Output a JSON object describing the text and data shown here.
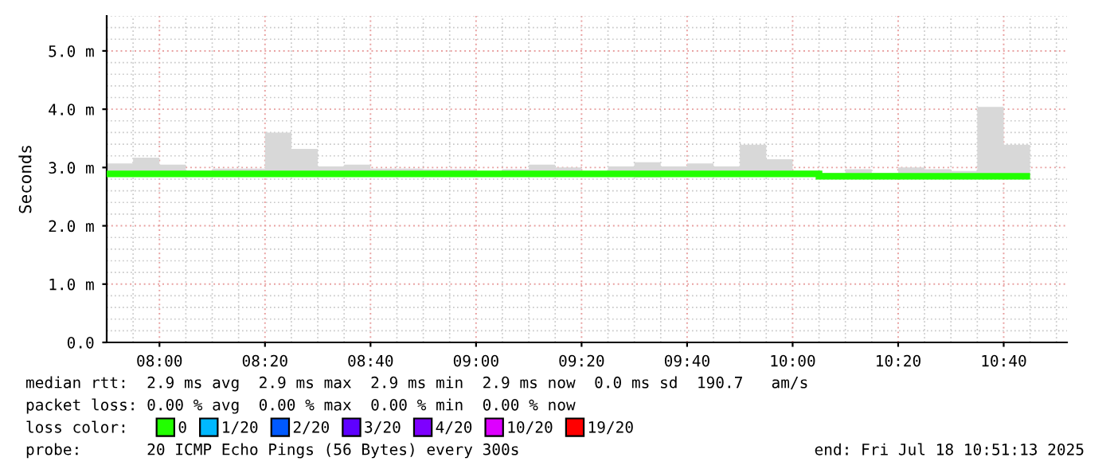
{
  "chart_data": {
    "type": "step",
    "ylabel": "Seconds",
    "x": [
      "2025-07-18T07:50",
      "2025-07-18T07:55",
      "2025-07-18T08:00",
      "2025-07-18T08:05",
      "2025-07-18T08:10",
      "2025-07-18T08:15",
      "2025-07-18T08:20",
      "2025-07-18T08:25",
      "2025-07-18T08:30",
      "2025-07-18T08:35",
      "2025-07-18T08:40",
      "2025-07-18T08:45",
      "2025-07-18T08:50",
      "2025-07-18T08:55",
      "2025-07-18T09:00",
      "2025-07-18T09:05",
      "2025-07-18T09:10",
      "2025-07-18T09:15",
      "2025-07-18T09:20",
      "2025-07-18T09:25",
      "2025-07-18T09:30",
      "2025-07-18T09:35",
      "2025-07-18T09:40",
      "2025-07-18T09:45",
      "2025-07-18T09:50",
      "2025-07-18T09:55",
      "2025-07-18T10:00",
      "2025-07-18T10:05",
      "2025-07-18T10:10",
      "2025-07-18T10:15",
      "2025-07-18T10:20",
      "2025-07-18T10:25",
      "2025-07-18T10:30",
      "2025-07-18T10:35",
      "2025-07-18T10:40",
      "2025-07-18T10:45"
    ],
    "series": [
      {
        "name": "0",
        "color": "#22ff00",
        "values": [
          2.89,
          2.89,
          2.89,
          2.89,
          2.89,
          2.89,
          2.89,
          2.89,
          2.89,
          2.89,
          2.89,
          2.89,
          2.89,
          2.89,
          2.89,
          2.89,
          2.89,
          2.89,
          2.89,
          2.89,
          2.89,
          2.89,
          2.89,
          2.89,
          2.89,
          2.89,
          2.89,
          2.85,
          2.85,
          2.85,
          2.85,
          2.85,
          2.85,
          2.85,
          2.85,
          2.85
        ],
        "lower": [
          2.86,
          2.86,
          2.86,
          2.86,
          2.86,
          2.86,
          2.86,
          2.86,
          2.86,
          2.86,
          2.86,
          2.86,
          2.86,
          2.86,
          2.86,
          2.86,
          2.86,
          2.86,
          2.86,
          2.86,
          2.83,
          2.86,
          2.86,
          2.86,
          2.86,
          2.86,
          2.86,
          2.83,
          2.83,
          2.83,
          2.83,
          2.83,
          2.83,
          2.83,
          2.83,
          2.83
        ],
        "upper": [
          3.07,
          3.17,
          3.05,
          2.95,
          2.98,
          2.98,
          3.6,
          3.32,
          3.02,
          3.05,
          2.98,
          2.98,
          2.97,
          2.97,
          2.92,
          2.97,
          3.05,
          3.0,
          2.94,
          3.02,
          3.09,
          3.02,
          3.07,
          3.02,
          3.39,
          3.14,
          2.95,
          2.91,
          2.97,
          2.91,
          3.0,
          2.97,
          2.94,
          4.04,
          3.39,
          3.39
        ]
      },
      {
        "name": "1/20",
        "color": "#00b8ff",
        "values": [
          null,
          null,
          null,
          null,
          null,
          null,
          null,
          null,
          null,
          null,
          null,
          null,
          null,
          null,
          null,
          null,
          null,
          null,
          null,
          null,
          null,
          null,
          null,
          null,
          null,
          null,
          null,
          null,
          null,
          null,
          null,
          null,
          null,
          null,
          null,
          null
        ]
      },
      {
        "name": "2/20",
        "color": "#0059ff",
        "values": [
          null,
          null,
          null,
          null,
          null,
          null,
          null,
          null,
          null,
          null,
          null,
          null,
          null,
          null,
          null,
          null,
          null,
          null,
          null,
          null,
          null,
          null,
          null,
          null,
          null,
          null,
          null,
          null,
          null,
          null,
          null,
          null,
          null,
          null,
          null,
          null
        ]
      },
      {
        "name": "3/20",
        "color": "#5e00ff",
        "values": [
          null,
          null,
          null,
          null,
          null,
          null,
          null,
          null,
          null,
          null,
          null,
          null,
          null,
          null,
          null,
          null,
          null,
          null,
          null,
          null,
          null,
          null,
          null,
          null,
          null,
          null,
          null,
          null,
          null,
          null,
          null,
          null,
          null,
          null,
          null,
          null
        ]
      },
      {
        "name": "4/20",
        "color": "#7e00ff",
        "values": [
          null,
          null,
          null,
          null,
          null,
          null,
          null,
          null,
          null,
          null,
          null,
          null,
          null,
          null,
          null,
          null,
          null,
          null,
          null,
          null,
          null,
          null,
          null,
          null,
          null,
          null,
          null,
          null,
          null,
          null,
          null,
          null,
          null,
          null,
          null,
          null
        ]
      },
      {
        "name": "10/20",
        "color": "#dd00ff",
        "values": [
          null,
          null,
          null,
          null,
          null,
          null,
          null,
          null,
          null,
          null,
          null,
          null,
          null,
          null,
          null,
          null,
          null,
          null,
          null,
          null,
          null,
          null,
          null,
          null,
          null,
          null,
          null,
          null,
          null,
          null,
          null,
          null,
          null,
          null,
          null,
          null
        ]
      },
      {
        "name": "19/20",
        "color": "#ff0000",
        "values": [
          null,
          null,
          null,
          null,
          null,
          null,
          null,
          null,
          null,
          null,
          null,
          null,
          null,
          null,
          null,
          null,
          null,
          null,
          null,
          null,
          null,
          null,
          null,
          null,
          null,
          null,
          null,
          null,
          null,
          null,
          null,
          null,
          null,
          null,
          null,
          null
        ]
      }
    ],
    "xlim": [
      "2025-07-18T07:50",
      "2025-07-18T10:52"
    ],
    "xticks": [
      {
        "value": "2025-07-18T08:00",
        "label": "08:00"
      },
      {
        "value": "2025-07-18T08:20",
        "label": "08:20"
      },
      {
        "value": "2025-07-18T08:40",
        "label": "08:40"
      },
      {
        "value": "2025-07-18T09:00",
        "label": "09:00"
      },
      {
        "value": "2025-07-18T09:20",
        "label": "09:20"
      },
      {
        "value": "2025-07-18T09:40",
        "label": "09:40"
      },
      {
        "value": "2025-07-18T10:00",
        "label": "10:00"
      },
      {
        "value": "2025-07-18T10:20",
        "label": "10:20"
      },
      {
        "value": "2025-07-18T10:40",
        "label": "10:40"
      }
    ],
    "ylim": [
      0,
      5.6
    ],
    "yticks": [
      {
        "value": 0,
        "label": "0.0"
      },
      {
        "value": 1,
        "label": "1.0 m"
      },
      {
        "value": 2,
        "label": "2.0 m"
      },
      {
        "value": 3,
        "label": "3.0 m"
      },
      {
        "value": 4,
        "label": "4.0 m"
      },
      {
        "value": 5,
        "label": "5.0 m"
      }
    ],
    "grid": true,
    "legend": "bottom",
    "annotations": [
      "median rtt:  2.9 ms avg  2.9 ms max  2.9 ms min  2.9 ms now  0.0 ms sd  190.7   am/s",
      "packet loss: 0.00 % avg  0.00 % max  0.00 % min  0.00 % now",
      "loss color:",
      "probe:       20 ICMP Echo Pings (56 Bytes) every 300s",
      "end: Fri Jul 18 10:51:13 2025"
    ]
  }
}
